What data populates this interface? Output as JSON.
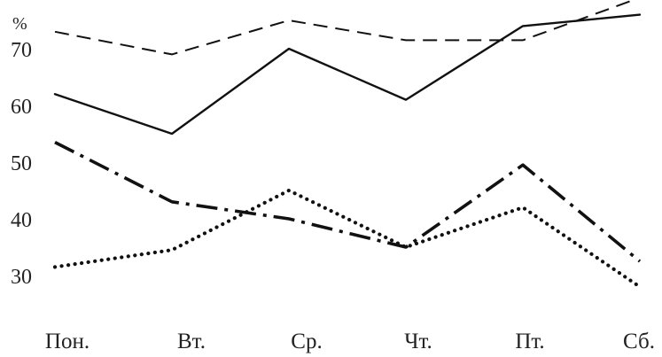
{
  "chart_data": {
    "type": "line",
    "title": "",
    "xlabel": "",
    "ylabel": "%",
    "categories": [
      "Пон.",
      "Вт.",
      "Ср.",
      "Чт.",
      "Пт.",
      "Сб."
    ],
    "y_ticks": [
      30,
      40,
      50,
      60,
      70
    ],
    "ylim": [
      28,
      81
    ],
    "grid": false,
    "legend": "none",
    "series": [
      {
        "style": "dashed",
        "values": [
          73,
          69,
          75,
          71.5,
          71.5,
          79
        ]
      },
      {
        "style": "solid",
        "values": [
          62,
          55,
          70,
          61,
          74,
          76
        ]
      },
      {
        "style": "dash-dot",
        "values": [
          53.5,
          43,
          40,
          35,
          49.5,
          32.5
        ]
      },
      {
        "style": "dotted",
        "values": [
          31.5,
          34.5,
          45,
          35,
          42,
          28
        ]
      }
    ]
  }
}
